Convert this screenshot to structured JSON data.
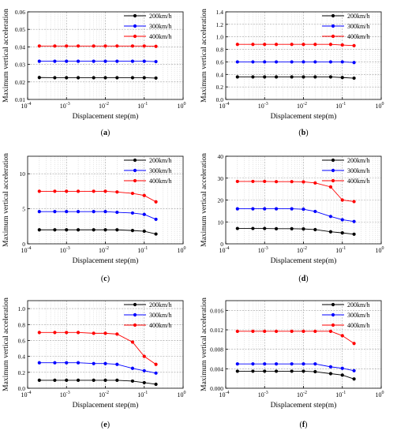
{
  "chart_data": [
    {
      "type": "line",
      "panel": "(a)",
      "xlabel": "Displacement step(m)",
      "ylabel": "Maximum vertical acceleration",
      "xscale": "log",
      "xlim": [
        0.0001,
        1
      ],
      "ylim": [
        0.01,
        0.06
      ],
      "yticks": [
        "0.01",
        "0.02",
        "0.03",
        "0.04",
        "0.05",
        "0.06"
      ],
      "grid": true,
      "legend_position": "top-right",
      "x": [
        0.0002,
        0.0005,
        0.001,
        0.002,
        0.005,
        0.01,
        0.02,
        0.05,
        0.1,
        0.2
      ],
      "series": [
        {
          "name": "200km/h",
          "color": "#000000",
          "values": [
            0.0225,
            0.0224,
            0.0224,
            0.0224,
            0.0224,
            0.0224,
            0.0224,
            0.0224,
            0.0224,
            0.0222
          ]
        },
        {
          "name": "300km/h",
          "color": "#0000ff",
          "values": [
            0.0318,
            0.0318,
            0.0318,
            0.0318,
            0.0318,
            0.0318,
            0.0318,
            0.0318,
            0.0318,
            0.0316
          ]
        },
        {
          "name": "400km/h",
          "color": "#ff0000",
          "values": [
            0.0405,
            0.0405,
            0.0405,
            0.0405,
            0.0405,
            0.0405,
            0.0405,
            0.0405,
            0.0405,
            0.0403
          ]
        }
      ]
    },
    {
      "type": "line",
      "panel": "(b)",
      "xlabel": "Displacement step(m)",
      "ylabel": "Maximum vertical acceleration",
      "xscale": "log",
      "xlim": [
        0.0001,
        1
      ],
      "ylim": [
        0.0,
        1.4
      ],
      "yticks": [
        "0.0",
        "0.2",
        "0.4",
        "0.6",
        "0.8",
        "1.0",
        "1.2",
        "1.4"
      ],
      "grid": true,
      "legend_position": "top-right",
      "x": [
        0.0002,
        0.0005,
        0.001,
        0.002,
        0.005,
        0.01,
        0.02,
        0.05,
        0.1,
        0.2
      ],
      "series": [
        {
          "name": "200km/h",
          "color": "#000000",
          "values": [
            0.36,
            0.36,
            0.36,
            0.36,
            0.36,
            0.36,
            0.36,
            0.36,
            0.35,
            0.34
          ]
        },
        {
          "name": "300km/h",
          "color": "#0000ff",
          "values": [
            0.6,
            0.6,
            0.6,
            0.6,
            0.6,
            0.6,
            0.6,
            0.6,
            0.6,
            0.59
          ]
        },
        {
          "name": "400km/h",
          "color": "#ff0000",
          "values": [
            0.88,
            0.88,
            0.88,
            0.88,
            0.88,
            0.88,
            0.88,
            0.88,
            0.87,
            0.86
          ]
        }
      ]
    },
    {
      "type": "line",
      "panel": "(c)",
      "xlabel": "Displacement step(m)",
      "ylabel": "Maximum vertical acceleration",
      "xscale": "log",
      "xlim": [
        0.0001,
        1
      ],
      "ylim": [
        0,
        12.5
      ],
      "yticks": [
        "0",
        "5",
        "10"
      ],
      "grid": true,
      "legend_position": "top-right",
      "x": [
        0.0002,
        0.0005,
        0.001,
        0.002,
        0.005,
        0.01,
        0.02,
        0.05,
        0.1,
        0.2
      ],
      "series": [
        {
          "name": "200km/h",
          "color": "#000000",
          "values": [
            2.0,
            2.0,
            2.0,
            2.0,
            2.0,
            2.0,
            2.0,
            1.9,
            1.8,
            1.4
          ]
        },
        {
          "name": "300km/h",
          "color": "#0000ff",
          "values": [
            4.6,
            4.6,
            4.6,
            4.6,
            4.6,
            4.6,
            4.5,
            4.4,
            4.2,
            3.5
          ]
        },
        {
          "name": "400km/h",
          "color": "#ff0000",
          "values": [
            7.5,
            7.5,
            7.5,
            7.5,
            7.5,
            7.5,
            7.4,
            7.2,
            6.9,
            6.0
          ]
        }
      ]
    },
    {
      "type": "line",
      "panel": "(d)",
      "xlabel": "Displacement step(m)",
      "ylabel": "Maximum vertical acceleration",
      "xscale": "log",
      "xlim": [
        0.0001,
        1
      ],
      "ylim": [
        0,
        40
      ],
      "yticks": [
        "0",
        "10",
        "20",
        "30",
        "40"
      ],
      "grid": true,
      "legend_position": "top-right",
      "x": [
        0.0002,
        0.0005,
        0.001,
        0.002,
        0.005,
        0.01,
        0.02,
        0.05,
        0.1,
        0.2
      ],
      "series": [
        {
          "name": "200km/h",
          "color": "#000000",
          "values": [
            7.0,
            7.0,
            7.0,
            6.9,
            6.9,
            6.8,
            6.5,
            5.5,
            5.0,
            4.4
          ]
        },
        {
          "name": "300km/h",
          "color": "#0000ff",
          "values": [
            16.0,
            16.0,
            16.0,
            16.0,
            16.0,
            15.8,
            14.8,
            12.5,
            11.0,
            10.2
          ]
        },
        {
          "name": "400km/h",
          "color": "#ff0000",
          "values": [
            28.5,
            28.5,
            28.5,
            28.4,
            28.4,
            28.3,
            27.8,
            26.0,
            20.0,
            19.3
          ]
        }
      ]
    },
    {
      "type": "line",
      "panel": "(e)",
      "xlabel": "Displacement step(m)",
      "ylabel": "Maximum vertical acceleration",
      "xscale": "log",
      "xlim": [
        0.0001,
        1
      ],
      "ylim": [
        0.0,
        1.1
      ],
      "yticks": [
        "0.0",
        "0.2",
        "0.4",
        "0.6",
        "0.8",
        "1.0"
      ],
      "grid": true,
      "legend_position": "top-right",
      "x": [
        0.0002,
        0.0005,
        0.001,
        0.002,
        0.005,
        0.01,
        0.02,
        0.05,
        0.1,
        0.2
      ],
      "series": [
        {
          "name": "200km/h",
          "color": "#000000",
          "values": [
            0.1,
            0.1,
            0.1,
            0.1,
            0.1,
            0.1,
            0.1,
            0.09,
            0.07,
            0.05
          ]
        },
        {
          "name": "300km/h",
          "color": "#0000ff",
          "values": [
            0.32,
            0.32,
            0.32,
            0.32,
            0.31,
            0.31,
            0.3,
            0.25,
            0.22,
            0.19
          ]
        },
        {
          "name": "400km/h",
          "color": "#ff0000",
          "values": [
            0.7,
            0.7,
            0.7,
            0.7,
            0.69,
            0.69,
            0.68,
            0.58,
            0.4,
            0.3
          ]
        }
      ]
    },
    {
      "type": "line",
      "panel": "(f)",
      "xlabel": "Displacement step(m)",
      "ylabel": "Maximum vertical acceleration",
      "xscale": "log",
      "xlim": [
        0.0001,
        1
      ],
      "ylim": [
        0.0,
        0.018
      ],
      "yticks": [
        "0.000",
        "0.004",
        "0.008",
        "0.012",
        "0.016"
      ],
      "grid": true,
      "legend_position": "top-right",
      "x": [
        0.0002,
        0.0005,
        0.001,
        0.002,
        0.005,
        0.01,
        0.02,
        0.05,
        0.1,
        0.2
      ],
      "series": [
        {
          "name": "200km/h",
          "color": "#000000",
          "values": [
            0.0035,
            0.0035,
            0.0035,
            0.0035,
            0.0035,
            0.0035,
            0.0034,
            0.003,
            0.0027,
            0.0019
          ]
        },
        {
          "name": "300km/h",
          "color": "#0000ff",
          "values": [
            0.005,
            0.005,
            0.005,
            0.005,
            0.005,
            0.005,
            0.005,
            0.0044,
            0.0041,
            0.0036
          ]
        },
        {
          "name": "400km/h",
          "color": "#ff0000",
          "values": [
            0.0117,
            0.0117,
            0.0117,
            0.0117,
            0.0117,
            0.0117,
            0.0117,
            0.0117,
            0.0108,
            0.0092
          ]
        }
      ]
    }
  ]
}
